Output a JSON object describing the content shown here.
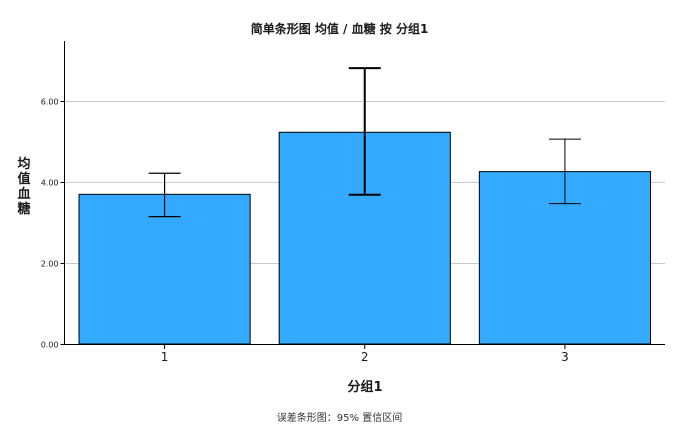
{
  "colors": {
    "bar_fill": "#33a9ff",
    "bar_stroke": "#000000",
    "grid": "#c8c8c8",
    "axis": "#000000",
    "text": "#1a1a1a"
  },
  "chart_data": {
    "type": "bar",
    "title": "简单条形图 均值 / 血糖 按 分组1",
    "xlabel": "分组1",
    "ylabel": "均值\n血糖",
    "categories": [
      "1",
      "2",
      "3"
    ],
    "values": [
      3.69,
      5.22,
      4.25
    ],
    "error_bars": {
      "lower": [
        3.14,
        3.68,
        3.46
      ],
      "upper": [
        4.21,
        6.8,
        5.05
      ],
      "stroke_width": [
        1.2,
        2,
        1
      ]
    },
    "ylim": [
      0,
      7.47
    ],
    "yticks": [
      0,
      2,
      4,
      6
    ],
    "ytick_labels": [
      "0.00",
      "2.00",
      "4.00",
      "6.00"
    ],
    "grid": true,
    "legend": "none",
    "footnote": "误差条形图：95% 置信区间"
  }
}
